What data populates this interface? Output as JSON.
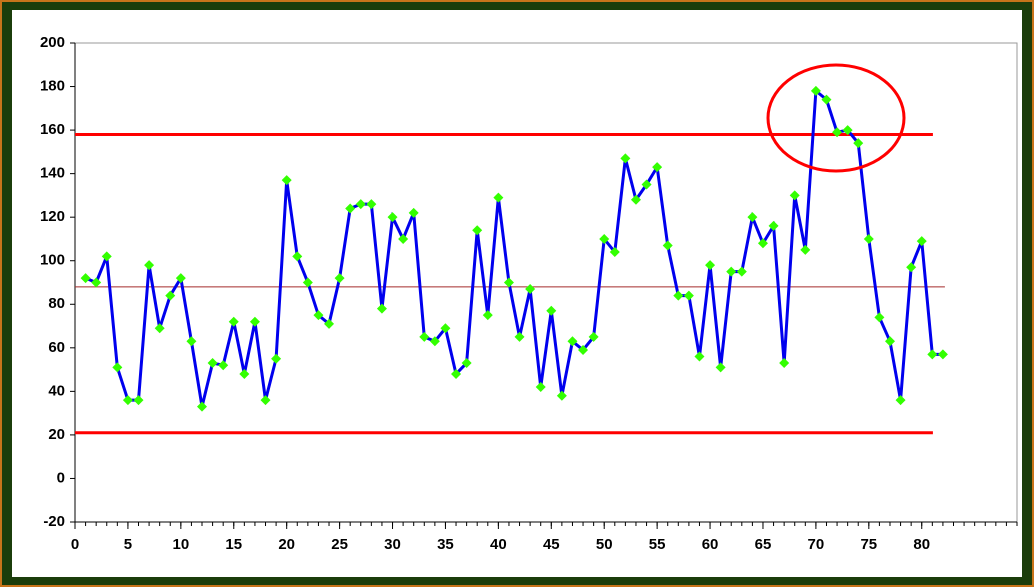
{
  "chart_data": {
    "type": "line",
    "x": [
      1,
      2,
      3,
      4,
      5,
      6,
      7,
      8,
      9,
      10,
      11,
      12,
      13,
      14,
      15,
      16,
      17,
      18,
      19,
      20,
      21,
      22,
      23,
      24,
      25,
      26,
      27,
      28,
      29,
      30,
      31,
      32,
      33,
      34,
      35,
      36,
      37,
      38,
      39,
      40,
      41,
      42,
      43,
      44,
      45,
      46,
      47,
      48,
      49,
      50,
      51,
      52,
      53,
      54,
      55,
      56,
      57,
      58,
      59,
      60,
      61,
      62,
      63,
      64,
      65,
      66,
      67,
      68,
      69,
      70,
      71,
      72,
      73,
      74,
      75,
      76,
      77,
      78,
      79,
      80,
      81,
      82
    ],
    "series": [
      {
        "color": "#0000ee",
        "marker_color": "#33ff00",
        "values": [
          92,
          90,
          102,
          51,
          36,
          36,
          98,
          69,
          84,
          92,
          63,
          33,
          53,
          52,
          72,
          48,
          72,
          36,
          55,
          137,
          102,
          90,
          75,
          71,
          92,
          124,
          126,
          126,
          78,
          120,
          110,
          122,
          65,
          63,
          69,
          48,
          53,
          114,
          75,
          129,
          90,
          65,
          87,
          42,
          77,
          38,
          63,
          59,
          65,
          110,
          104,
          147,
          128,
          135,
          143,
          107,
          84,
          84,
          56,
          98,
          51,
          95,
          95,
          120,
          108,
          116,
          53,
          130,
          105,
          178,
          174,
          159,
          160,
          154,
          110,
          74,
          63,
          36,
          97,
          109,
          57,
          57
        ]
      }
    ],
    "control_lines": [
      {
        "value": 158,
        "color": "#ff0000",
        "width": 3
      },
      {
        "value": 88,
        "color": "#a52a2a",
        "width": 1
      },
      {
        "value": 21,
        "color": "#ff0000",
        "width": 3
      }
    ],
    "xlim": [
      0,
      89
    ],
    "ylim": [
      -20,
      200
    ],
    "xticks": [
      0,
      5,
      10,
      15,
      20,
      25,
      30,
      35,
      40,
      45,
      50,
      55,
      60,
      65,
      70,
      75,
      80
    ],
    "xminor_step": 1,
    "yticks": [
      -20,
      0,
      20,
      40,
      60,
      80,
      100,
      120,
      140,
      160,
      180,
      200
    ]
  }
}
